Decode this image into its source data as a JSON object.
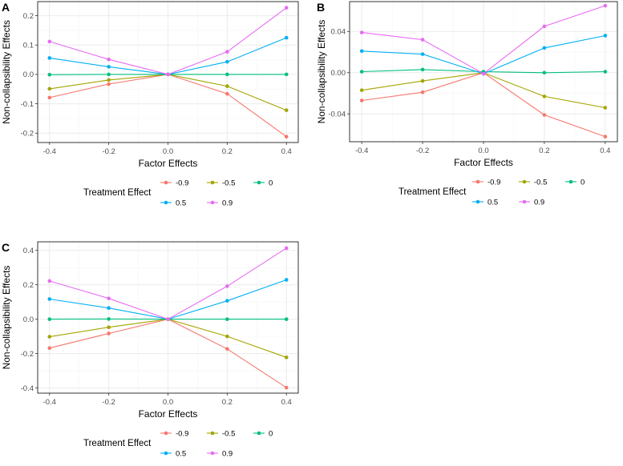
{
  "chart_data": [
    {
      "panel_label": "A",
      "type": "line",
      "xlabel": "Factor Effects",
      "ylabel": "Non-collapsibility Effects",
      "x": [
        -0.4,
        -0.2,
        0.0,
        0.2,
        0.4
      ],
      "x_ticks": [
        "-0.4",
        "-0.2",
        "0.0",
        "0.2",
        "0.4"
      ],
      "y_ticks": [
        "-0.2",
        "-0.1",
        "0.0",
        "0.1",
        "0.2"
      ],
      "y_tick_values": [
        -0.2,
        -0.1,
        0.0,
        0.1,
        0.2
      ],
      "xlim": [
        -0.44,
        0.44
      ],
      "ylim": [
        -0.232,
        0.248
      ],
      "series": [
        {
          "name": "-0.9",
          "values": [
            -0.079,
            -0.033,
            0.0,
            -0.066,
            -0.212
          ]
        },
        {
          "name": "-0.5",
          "values": [
            -0.049,
            -0.019,
            0.0,
            -0.04,
            -0.122
          ]
        },
        {
          "name": "0",
          "values": [
            -0.001,
            0.0,
            0.0,
            0.0,
            0.0
          ]
        },
        {
          "name": "0.5",
          "values": [
            0.056,
            0.026,
            0.0,
            0.043,
            0.125
          ]
        },
        {
          "name": "0.9",
          "values": [
            0.112,
            0.051,
            0.0,
            0.077,
            0.227
          ]
        }
      ],
      "legend": {
        "title": "Treatment Effect",
        "placement": "bottom"
      }
    },
    {
      "panel_label": "B",
      "type": "line",
      "xlabel": "Factor Effects",
      "ylabel": "Non-collapsibility Effects",
      "x": [
        -0.4,
        -0.2,
        0.0,
        0.2,
        0.4
      ],
      "x_ticks": [
        "-0.4",
        "-0.2",
        "0.0",
        "0.2",
        "0.4"
      ],
      "y_ticks": [
        "-0.04",
        "0.00",
        "0.04"
      ],
      "y_tick_values": [
        -0.04,
        0.0,
        0.04
      ],
      "xlim": [
        -0.44,
        0.44
      ],
      "ylim": [
        -0.067,
        0.069
      ],
      "series": [
        {
          "name": "-0.9",
          "values": [
            -0.027,
            -0.019,
            0.0,
            -0.041,
            -0.062
          ]
        },
        {
          "name": "-0.5",
          "values": [
            -0.017,
            -0.008,
            0.0,
            -0.023,
            -0.034
          ]
        },
        {
          "name": "0",
          "values": [
            0.001,
            0.003,
            0.001,
            0.0,
            0.001
          ]
        },
        {
          "name": "0.5",
          "values": [
            0.021,
            0.018,
            -0.001,
            0.024,
            0.036
          ]
        },
        {
          "name": "0.9",
          "values": [
            0.039,
            0.032,
            -0.001,
            0.045,
            0.065
          ]
        }
      ],
      "legend": {
        "title": "Treatment Effect",
        "placement": "bottom"
      }
    },
    {
      "panel_label": "C",
      "type": "line",
      "xlabel": "Factor Effects",
      "ylabel": "Non-collapsibility Effects",
      "x": [
        -0.4,
        -0.2,
        0.0,
        0.2,
        0.4
      ],
      "x_ticks": [
        "-0.4",
        "-0.2",
        "0.0",
        "0.2",
        "0.4"
      ],
      "y_ticks": [
        "-0.4",
        "-0.2",
        "0.0",
        "0.2",
        "0.4"
      ],
      "y_tick_values": [
        -0.4,
        -0.2,
        0.0,
        0.2,
        0.4
      ],
      "xlim": [
        -0.44,
        0.44
      ],
      "ylim": [
        -0.43,
        0.45
      ],
      "series": [
        {
          "name": "-0.9",
          "values": [
            -0.168,
            -0.083,
            0.0,
            -0.173,
            -0.398
          ]
        },
        {
          "name": "-0.5",
          "values": [
            -0.102,
            -0.047,
            0.0,
            -0.1,
            -0.222
          ]
        },
        {
          "name": "0",
          "values": [
            0.0,
            0.001,
            0.0,
            0.0,
            0.0
          ]
        },
        {
          "name": "0.5",
          "values": [
            0.117,
            0.065,
            0.0,
            0.107,
            0.229
          ]
        },
        {
          "name": "0.9",
          "values": [
            0.222,
            0.121,
            0.0,
            0.192,
            0.413
          ]
        }
      ],
      "legend": {
        "title": "Treatment Effect",
        "placement": "bottom"
      }
    }
  ],
  "colors": {
    "-0.9": "#F8766D",
    "-0.5": "#A3A500",
    "0": "#00BF7D",
    "0.5": "#00B0F6",
    "0.9": "#E76BF3",
    "grid_major": "#EBEBEB",
    "grid_minor": "#F4F4F4",
    "panel_border": "#333333",
    "tick_text": "#4D4D4D"
  }
}
